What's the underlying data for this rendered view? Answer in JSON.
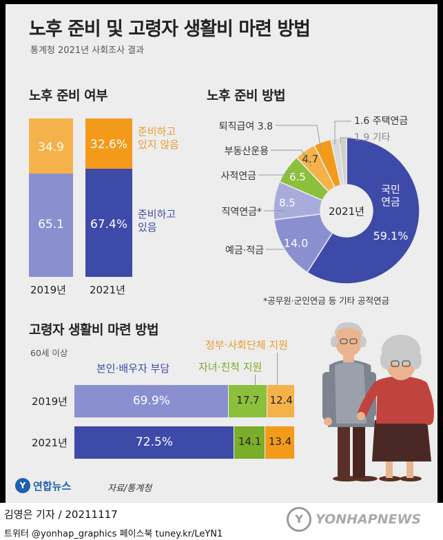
{
  "header": {
    "title": "노후 준비 및 고령자 생활비 마련 방법",
    "subtitle": "통계청 2021년 사회조사 결과"
  },
  "colors": {
    "orange": "#f6b24a",
    "orange_text": "#e79c2a",
    "navy": "#3e4aa8",
    "lavender": "#8a8fd0",
    "light_lavender": "#a8acdc",
    "green": "#8bbf3c",
    "gray": "#cfcfcf"
  },
  "chart_data": [
    {
      "type": "bar",
      "title": "노후 준비 여부",
      "categories": [
        "2019년",
        "2021년"
      ],
      "series": [
        {
          "name": "준비하고 있음",
          "values": [
            "65.1",
            "67.4%"
          ]
        },
        {
          "name": "준비하고 있지 않음",
          "values": [
            "34.9",
            "32.6%"
          ]
        }
      ],
      "legend": {
        "not_prepared": "준비하고 있지 않음",
        "prepared": "준비하고 있음"
      }
    },
    {
      "type": "pie",
      "title": "노후 준비 방법",
      "center_label": "2021년",
      "slices": [
        {
          "label": "국민연금",
          "value": 59.1,
          "value_label": "59.1%"
        },
        {
          "label": "예금·적금",
          "value": 14.0,
          "value_label": "14.0"
        },
        {
          "label": "직역연금*",
          "value": 8.5,
          "value_label": "8.5"
        },
        {
          "label": "사적연금",
          "value": 6.5,
          "value_label": "6.5"
        },
        {
          "label": "부동산운용",
          "value": 4.7,
          "value_label": "4.7"
        },
        {
          "label": "퇴직급여",
          "value": 3.8,
          "value_label": "3.8"
        },
        {
          "label": "주택연금",
          "value": 1.6,
          "value_label": "1.6"
        },
        {
          "label": "기타",
          "value": 1.9,
          "value_label": "1.9"
        }
      ],
      "footnote": "*공무원·군인연금 등 기타 공적연금"
    },
    {
      "type": "bar",
      "title": "고령자 생활비 마련 방법",
      "subtitle": "60세 이상",
      "categories": [
        "2019년",
        "2021년"
      ],
      "series": [
        {
          "name": "본인·배우자 부담",
          "values": [
            69.9,
            72.5
          ],
          "value_labels": [
            "69.9%",
            "72.5%"
          ]
        },
        {
          "name": "자녀·친척 지원",
          "values": [
            17.7,
            14.1
          ],
          "value_labels": [
            "17.7",
            "14.1"
          ]
        },
        {
          "name": "정부·사회단체 지원",
          "values": [
            12.4,
            13.4
          ],
          "value_labels": [
            "12.4",
            "13.4"
          ]
        }
      ]
    }
  ],
  "footer": {
    "logo_text": "연합뉴스",
    "source": "자료/통계청",
    "byline": "김영은 기자 / 20211117",
    "social": "트위터 @yonhap_graphics  페이스북 tuney.kr/LeYN1",
    "watermark": "YONHAPNEWS"
  }
}
